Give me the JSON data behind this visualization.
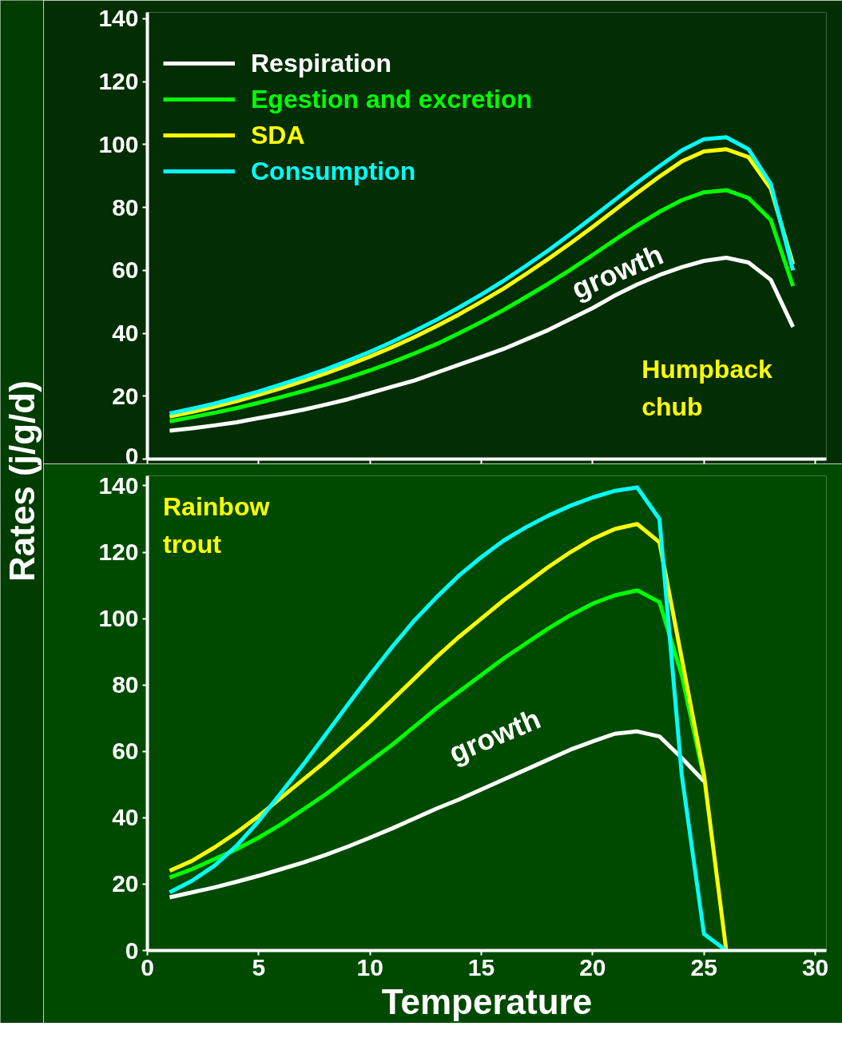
{
  "chart_data": [
    {
      "type": "line",
      "xlim": [
        0,
        30.5
      ],
      "xticks": [
        0,
        5,
        10,
        15,
        20,
        25,
        30
      ],
      "ylim": [
        0,
        142
      ],
      "yticks": [
        0,
        20,
        40,
        60,
        80,
        100,
        120,
        140
      ],
      "tick_labels": "y",
      "legend": "top left",
      "grid": false,
      "ylabel": "Rates (j/g/d)",
      "x": [
        1,
        2,
        3,
        4,
        5,
        6,
        7,
        8,
        9,
        10,
        11,
        12,
        13,
        14,
        15,
        16,
        17,
        18,
        19,
        20,
        21,
        22,
        23,
        24,
        25,
        26,
        27,
        28,
        29
      ],
      "series": [
        {
          "name": "Respiration",
          "color": "#ffffff",
          "values": [
            9,
            9.8,
            10.7,
            11.7,
            13,
            14.3,
            15.7,
            17.3,
            19,
            21,
            23,
            25,
            27.5,
            30,
            32.5,
            35,
            38,
            41,
            44.5,
            48,
            52,
            55.5,
            58.5,
            61,
            63,
            64,
            62.5,
            57,
            42
          ]
        },
        {
          "name": "Egestion and excretion",
          "color": "#00ff00",
          "values": [
            12,
            13.3,
            14.7,
            16.2,
            17.9,
            19.7,
            21.6,
            23.6,
            25.8,
            28.2,
            30.8,
            33.6,
            36.6,
            40,
            43.6,
            47.4,
            51.5,
            55.7,
            60.2,
            64.9,
            69.7,
            74.3,
            78.6,
            82.3,
            84.8,
            85.5,
            83,
            76,
            55
          ]
        },
        {
          "name": "SDA",
          "color": "#ffff00",
          "values": [
            13.5,
            15,
            16.6,
            18.4,
            20.4,
            22.5,
            24.8,
            27.2,
            29.8,
            32.6,
            35.6,
            38.8,
            42.3,
            46,
            50,
            54.2,
            58.8,
            63.6,
            68.6,
            73.8,
            79.2,
            84.6,
            89.8,
            94.6,
            97.8,
            98.5,
            96,
            86,
            62
          ]
        },
        {
          "name": "Consumption",
          "color": "#00ffff",
          "values": [
            14.5,
            16,
            17.6,
            19.5,
            21.5,
            23.7,
            26,
            28.5,
            31.2,
            34.1,
            37.3,
            40.7,
            44.3,
            48.2,
            52.3,
            56.7,
            61.4,
            66.3,
            71.5,
            76.9,
            82.4,
            87.9,
            93.1,
            98.1,
            101.7,
            102.3,
            98.5,
            87.5,
            60
          ]
        }
      ],
      "annotations": [
        "growth",
        "Humpback chub"
      ]
    },
    {
      "type": "line",
      "xlim": [
        0,
        30.5
      ],
      "xticks": [
        0,
        5,
        10,
        15,
        20,
        25,
        30
      ],
      "ylim": [
        0,
        143
      ],
      "yticks": [
        0,
        20,
        40,
        60,
        80,
        100,
        120,
        140
      ],
      "grid": false,
      "xlabel": "Temperature",
      "series": [
        {
          "color": "#ffffff",
          "x": [
            1,
            2,
            3,
            4,
            5,
            6,
            7,
            8,
            9,
            10,
            11,
            12,
            13,
            14,
            15,
            16,
            17,
            18,
            19,
            20,
            21,
            22,
            23,
            24,
            25
          ],
          "values": [
            16,
            17.5,
            19,
            20.7,
            22.5,
            24.5,
            26.5,
            28.8,
            31.3,
            34,
            36.8,
            39.8,
            42.8,
            45.5,
            48.5,
            51.5,
            54.5,
            57.5,
            60.5,
            63,
            65.3,
            66,
            64.5,
            58,
            51
          ]
        },
        {
          "color": "#00ff00",
          "x": [
            1,
            2,
            3,
            4,
            5,
            6,
            7,
            8,
            9,
            10,
            11,
            12,
            13,
            14,
            15,
            16,
            17,
            18,
            19,
            20,
            21,
            22,
            23,
            24,
            25
          ],
          "values": [
            22,
            24.5,
            27.5,
            30.5,
            34,
            38,
            42.5,
            47,
            52,
            57,
            62,
            67.5,
            73,
            78,
            83,
            88,
            92.5,
            97,
            101,
            104.5,
            107,
            108.5,
            105,
            83,
            52
          ]
        },
        {
          "color": "#ffff00",
          "x": [
            1,
            2,
            3,
            4,
            5,
            6,
            7,
            8,
            9,
            10,
            11,
            12,
            13,
            14,
            15,
            16,
            17,
            18,
            19,
            20,
            21,
            22,
            23,
            24,
            25,
            26
          ],
          "values": [
            24,
            27,
            31,
            35.5,
            40.5,
            46,
            51.5,
            57,
            63,
            69,
            75.5,
            82,
            88.5,
            94.5,
            100,
            105.5,
            110.5,
            115.5,
            120,
            124,
            127,
            128.5,
            123,
            88,
            53,
            0
          ]
        },
        {
          "color": "#00ffff",
          "x": [
            1,
            2,
            3,
            4,
            5,
            6,
            7,
            8,
            9,
            10,
            11,
            12,
            13,
            14,
            15,
            16,
            17,
            18,
            19,
            20,
            21,
            22,
            23,
            24,
            25,
            26
          ],
          "values": [
            17.5,
            21,
            25.5,
            31.5,
            39,
            47.5,
            56,
            65,
            74,
            83,
            91.5,
            99.5,
            106.5,
            113,
            118.5,
            123.5,
            127.5,
            131,
            134,
            136.5,
            138.5,
            139.5,
            130,
            53,
            5,
            0
          ]
        }
      ],
      "annotations": [
        "growth",
        "Rainbow trout"
      ]
    }
  ]
}
